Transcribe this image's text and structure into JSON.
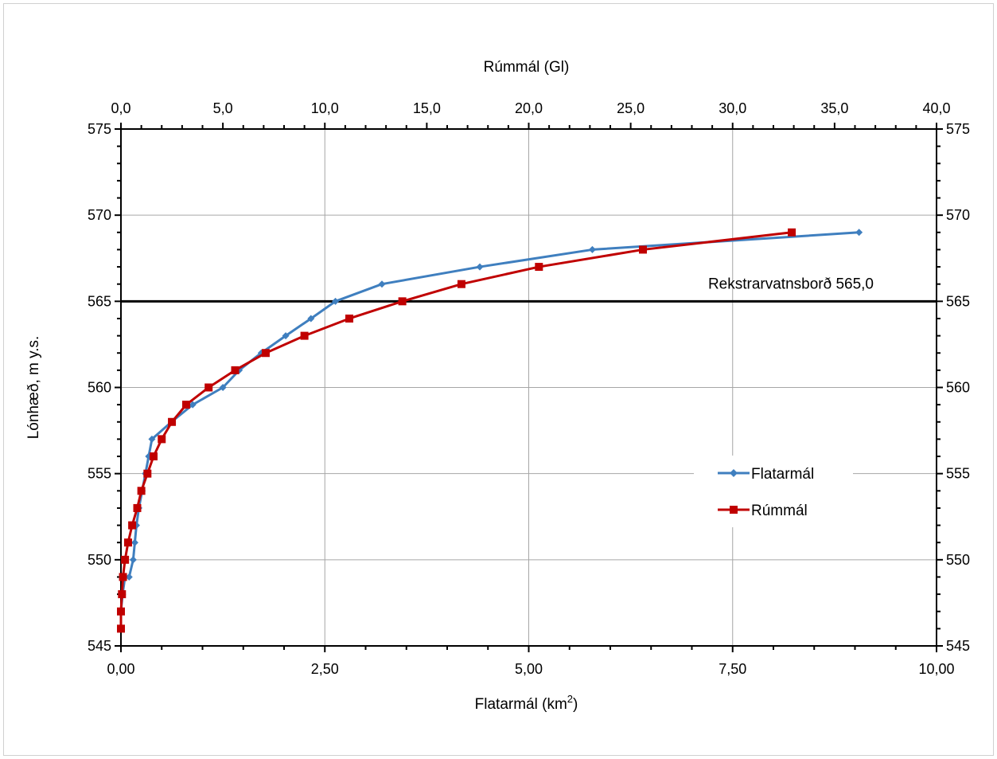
{
  "chart_data": {
    "type": "line",
    "title": "",
    "xlabel_bottom": "Flatarmál (km",
    "xlabel_bottom_sup": "2",
    "xlabel_bottom_end": ")",
    "xlabel_top": "Rúmmál (Gl)",
    "ylabel": "Lónhæð, m y.s.",
    "xlim_bottom": [
      0,
      10
    ],
    "xlim_top": [
      0,
      40
    ],
    "ylim": [
      545,
      575
    ],
    "xticks_bottom": [
      "0,00",
      "2,50",
      "5,00",
      "7,50",
      "10,00"
    ],
    "xticks_top": [
      "0,0",
      "5,0",
      "10,0",
      "15,0",
      "20,0",
      "25,0",
      "30,0",
      "35,0",
      "40,0"
    ],
    "yticks": [
      "545",
      "550",
      "555",
      "560",
      "565",
      "570",
      "575"
    ],
    "yticks_right": [
      "545",
      "550",
      "555",
      "560",
      "565",
      "570",
      "575"
    ],
    "grid": true,
    "legend_placement": "right",
    "reference_line": {
      "y": 565,
      "label": "Rekstrarvatnsborð 565,0",
      "color": "#000000"
    },
    "series": [
      {
        "name": "Flatarmál",
        "axis": "bottom",
        "color": "#3f7fbf",
        "marker": "diamond",
        "points": [
          [
            0.0,
            546
          ],
          [
            0.0,
            547
          ],
          [
            0.02,
            548
          ],
          [
            0.05,
            549
          ],
          [
            0.1,
            549
          ],
          [
            0.15,
            550
          ],
          [
            0.17,
            551
          ],
          [
            0.19,
            552
          ],
          [
            0.22,
            553
          ],
          [
            0.26,
            554
          ],
          [
            0.3,
            555
          ],
          [
            0.34,
            556
          ],
          [
            0.38,
            557
          ],
          [
            0.62,
            558
          ],
          [
            0.88,
            559
          ],
          [
            1.25,
            560
          ],
          [
            1.45,
            561
          ],
          [
            1.72,
            562
          ],
          [
            2.02,
            563
          ],
          [
            2.33,
            564
          ],
          [
            2.63,
            565
          ],
          [
            3.2,
            566
          ],
          [
            4.4,
            567
          ],
          [
            5.78,
            568
          ],
          [
            9.05,
            569
          ]
        ]
      },
      {
        "name": "Rúmmál",
        "axis": "top",
        "color": "#c00000",
        "marker": "square",
        "points": [
          [
            0.0,
            546
          ],
          [
            0.0,
            547
          ],
          [
            0.05,
            548
          ],
          [
            0.1,
            549
          ],
          [
            0.2,
            550
          ],
          [
            0.35,
            551
          ],
          [
            0.55,
            552
          ],
          [
            0.8,
            553
          ],
          [
            1.0,
            554
          ],
          [
            1.3,
            555
          ],
          [
            1.6,
            556
          ],
          [
            2.0,
            557
          ],
          [
            2.5,
            558
          ],
          [
            3.2,
            559
          ],
          [
            4.3,
            560
          ],
          [
            5.6,
            561
          ],
          [
            7.1,
            562
          ],
          [
            9.0,
            563
          ],
          [
            11.2,
            564
          ],
          [
            13.8,
            565
          ],
          [
            16.7,
            566
          ],
          [
            20.5,
            567
          ],
          [
            25.6,
            568
          ],
          [
            32.9,
            569
          ]
        ]
      }
    ]
  }
}
